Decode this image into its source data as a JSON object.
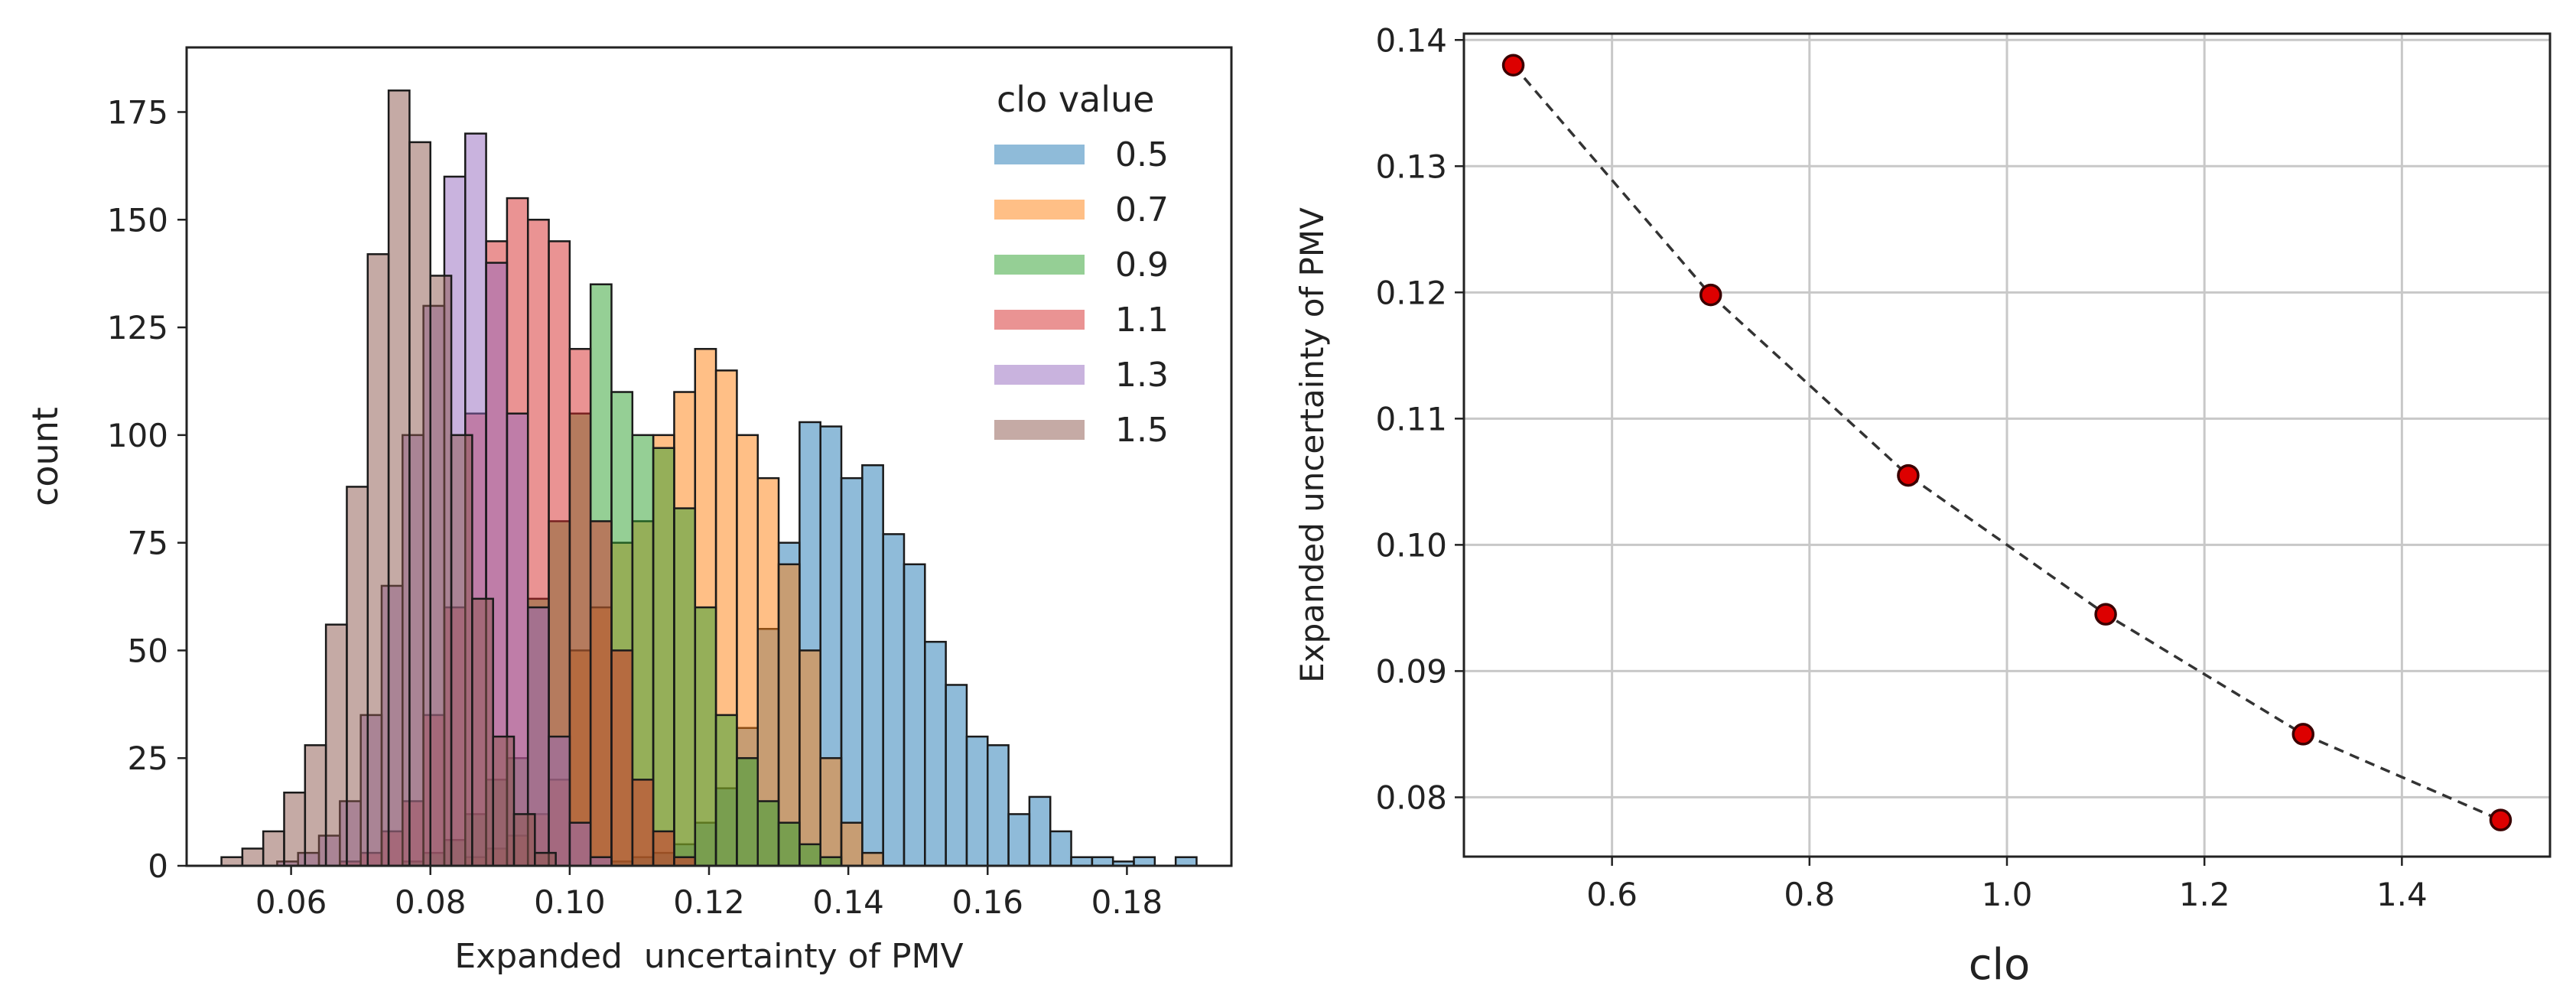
{
  "chart_data": [
    {
      "type": "bar",
      "subtype": "overlapping-histogram",
      "xlabel": "Expanded  uncertainty of PMV",
      "ylabel": "count",
      "xlim": [
        0.045,
        0.195
      ],
      "ylim": [
        0,
        190
      ],
      "xticks": [
        0.06,
        0.08,
        0.1,
        0.12,
        0.14,
        0.16,
        0.18
      ],
      "xtick_labels": [
        "0.06",
        "0.08",
        "0.10",
        "0.12",
        "0.14",
        "0.16",
        "0.18"
      ],
      "yticks": [
        0,
        25,
        50,
        75,
        100,
        125,
        150,
        175
      ],
      "ytick_labels": [
        "0",
        "25",
        "50",
        "75",
        "100",
        "125",
        "150",
        "175"
      ],
      "bin_width": 0.003,
      "grid": false,
      "legend": {
        "title": "clo value",
        "placement": "top-right",
        "entries": [
          "0.5",
          "0.7",
          "0.9",
          "1.1",
          "1.3",
          "1.5"
        ]
      },
      "series": [
        {
          "name": "0.5",
          "color": "#1f77b4",
          "bin_start": [
            0.103,
            0.106,
            0.109,
            0.112,
            0.115,
            0.118,
            0.121,
            0.124,
            0.127,
            0.13,
            0.133,
            0.136,
            0.139,
            0.142,
            0.145,
            0.148,
            0.151,
            0.154,
            0.157,
            0.16,
            0.163,
            0.166,
            0.169,
            0.172,
            0.175,
            0.178,
            0.181,
            0.184,
            0.187
          ],
          "values": [
            0,
            1,
            2,
            3,
            5,
            10,
            18,
            32,
            55,
            75,
            103,
            102,
            90,
            93,
            77,
            70,
            52,
            42,
            30,
            28,
            12,
            16,
            8,
            2,
            2,
            1,
            2,
            0,
            2
          ]
        },
        {
          "name": "0.7",
          "color": "#ff7f0e",
          "bin_start": [
            0.085,
            0.088,
            0.091,
            0.094,
            0.097,
            0.1,
            0.103,
            0.106,
            0.109,
            0.112,
            0.115,
            0.118,
            0.121,
            0.124,
            0.127,
            0.13,
            0.133,
            0.136,
            0.139,
            0.142
          ],
          "values": [
            2,
            4,
            7,
            12,
            20,
            50,
            60,
            75,
            80,
            100,
            110,
            120,
            115,
            100,
            90,
            70,
            50,
            25,
            10,
            3
          ]
        },
        {
          "name": "0.9",
          "color": "#2ca02c",
          "bin_start": [
            0.076,
            0.079,
            0.082,
            0.085,
            0.088,
            0.091,
            0.094,
            0.097,
            0.1,
            0.103,
            0.106,
            0.109,
            0.112,
            0.115,
            0.118,
            0.121,
            0.124,
            0.127,
            0.13,
            0.133,
            0.136
          ],
          "values": [
            1,
            3,
            6,
            12,
            20,
            25,
            62,
            80,
            105,
            135,
            110,
            100,
            97,
            83,
            60,
            35,
            25,
            15,
            10,
            5,
            2
          ]
        },
        {
          "name": "1.1",
          "color": "#d62728",
          "bin_start": [
            0.067,
            0.07,
            0.073,
            0.076,
            0.079,
            0.082,
            0.085,
            0.088,
            0.091,
            0.094,
            0.097,
            0.1,
            0.103,
            0.106,
            0.109,
            0.112,
            0.115
          ],
          "values": [
            1,
            3,
            8,
            15,
            35,
            60,
            105,
            145,
            155,
            150,
            145,
            120,
            80,
            50,
            20,
            8,
            2
          ]
        },
        {
          "name": "1.3",
          "color": "#9467bd",
          "bin_start": [
            0.058,
            0.061,
            0.064,
            0.067,
            0.07,
            0.073,
            0.076,
            0.079,
            0.082,
            0.085,
            0.088,
            0.091,
            0.094,
            0.097,
            0.1,
            0.103
          ],
          "values": [
            1,
            3,
            7,
            15,
            35,
            65,
            100,
            130,
            160,
            170,
            140,
            105,
            60,
            30,
            10,
            2
          ]
        },
        {
          "name": "1.5",
          "color": "#8c564b",
          "bin_start": [
            0.05,
            0.053,
            0.056,
            0.059,
            0.062,
            0.065,
            0.068,
            0.071,
            0.074,
            0.077,
            0.08,
            0.083,
            0.086,
            0.089,
            0.092,
            0.095
          ],
          "values": [
            2,
            4,
            8,
            17,
            28,
            56,
            88,
            142,
            180,
            168,
            137,
            100,
            62,
            30,
            12,
            3
          ]
        }
      ]
    },
    {
      "type": "line",
      "subtype": "line-with-markers",
      "xlabel": "clo",
      "ylabel": "Expanded uncertainty of PMV",
      "xlim": [
        0.45,
        1.55
      ],
      "ylim": [
        0.0753,
        0.1405
      ],
      "xticks": [
        0.6,
        0.8,
        1.0,
        1.2,
        1.4
      ],
      "xtick_labels": [
        "0.6",
        "0.8",
        "1.0",
        "1.2",
        "1.4"
      ],
      "yticks": [
        0.08,
        0.09,
        0.1,
        0.11,
        0.12,
        0.13,
        0.14
      ],
      "ytick_labels": [
        "0.08",
        "0.09",
        "0.10",
        "0.11",
        "0.12",
        "0.13",
        "0.14"
      ],
      "grid": true,
      "line_style": "dashed",
      "line_color": "#333333",
      "marker_color": "#dd0000",
      "marker_edge": "#3a0000",
      "x": [
        0.5,
        0.7,
        0.9,
        1.1,
        1.3,
        1.5
      ],
      "y": [
        0.138,
        0.1198,
        0.1055,
        0.0945,
        0.085,
        0.0782
      ]
    }
  ]
}
